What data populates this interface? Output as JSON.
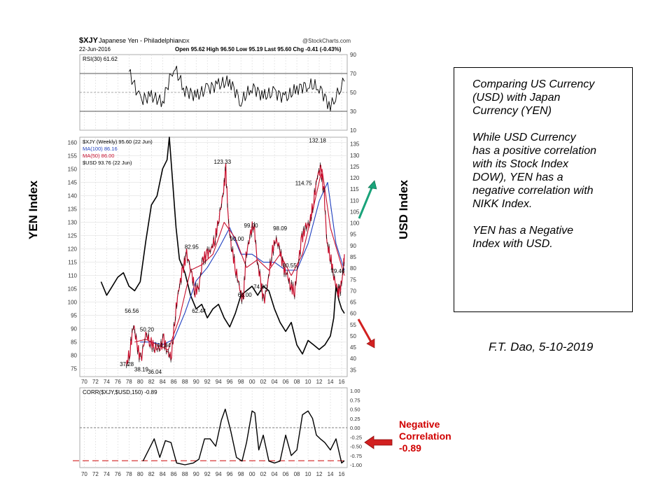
{
  "header": {
    "symbol": "$XJY",
    "name": "Japanese Yen - Philadelphia",
    "exchange": "INDX",
    "source": "@StockCharts.com",
    "date": "22-Jun-2016",
    "ohlc": "Open 95.62  High 96.50  Low 95.19  Last 95.60  Chg -0.41 (-0.43%)"
  },
  "left_axis_label": "YEN Index",
  "right_axis_label": "USD Index",
  "note_box": {
    "para1": "Comparing US Currency\n(USD) with Japan\nCurrency (YEN)",
    "para2": "While USD Currency\nhas a positive correlation\nwith its Stock Index\nDOW),  YEN has a\nnegative correlation with\nNIKK Index.",
    "para3": "YEN has a Negative\nIndex with USD."
  },
  "author": "F.T. Dao, 5-10-2019",
  "negative_label": "Negative\nCorrelation\n-0.89",
  "colors": {
    "price": "#c8102e",
    "ma100": "#1f3fbf",
    "ma50": "#c8102e",
    "usd": "#000000",
    "arrow_up": "#1aa37a",
    "arrow_down": "#d22020",
    "neg_line": "#d22020"
  },
  "chart_data": [
    {
      "type": "line",
      "panel": "RSI",
      "legend": "RSI(30) 61.62",
      "yticks": [
        10,
        30,
        50,
        70,
        90
      ],
      "levels": [
        30,
        50,
        70
      ],
      "ylim": [
        10,
        90
      ],
      "x": [
        1978,
        1980,
        1982,
        1984,
        1986,
        1988,
        1990,
        1992,
        1994,
        1996,
        1998,
        2000,
        2002,
        2004,
        2006,
        2008,
        2010,
        2012,
        2014,
        2016.5
      ],
      "values": [
        72,
        42,
        46,
        40,
        78,
        52,
        46,
        54,
        58,
        62,
        40,
        56,
        46,
        50,
        44,
        54,
        58,
        56,
        34,
        61.62
      ]
    },
    {
      "type": "line",
      "panel": "Price",
      "legend": [
        "$XJY (Weekly) 95.60 (22 Jun)",
        "MA(100) 86.16",
        "MA(50) 86.00",
        "$USD 93.76 (22 Jun)"
      ],
      "left_yticks": [
        75,
        80,
        85,
        90,
        95,
        100,
        105,
        110,
        115,
        120,
        125,
        130,
        135,
        140,
        145,
        150,
        155,
        160
      ],
      "right_yticks": [
        35,
        40,
        45,
        50,
        55,
        60,
        65,
        70,
        75,
        80,
        85,
        90,
        95,
        100,
        105,
        110,
        115,
        120,
        125,
        130,
        135
      ],
      "left_ylim": [
        72,
        162
      ],
      "right_ylim": [
        32,
        138
      ],
      "xticks": [
        "70",
        "72",
        "74",
        "76",
        "78",
        "80",
        "82",
        "84",
        "86",
        "88",
        "90",
        "92",
        "94",
        "96",
        "98",
        "00",
        "02",
        "04",
        "06",
        "08",
        "10",
        "12",
        "14",
        "16"
      ],
      "series": [
        {
          "name": "$XJY (Weekly) 95.60 (22 Jun)",
          "axis": "left",
          "x": [
            1977.5,
            1978.2,
            1978.8,
            1979.4,
            1980.1,
            1981.0,
            1981.8,
            1982.6,
            1983.4,
            1984.2,
            1985.0,
            1985.6,
            1986.3,
            1986.9,
            1987.6,
            1988.3,
            1989.1,
            1989.8,
            1990.5,
            1991.2,
            1992.0,
            1992.7,
            1993.4,
            1994.1,
            1994.8,
            1995.3,
            1995.8,
            1996.4,
            1997.1,
            1997.8,
            1998.4,
            1998.9,
            1999.6,
            2000.3,
            2000.9,
            2001.5,
            2002.1,
            2002.8,
            2003.5,
            2004.2,
            2004.9,
            2005.6,
            2006.3,
            2006.9,
            2007.6,
            2008.2,
            2008.9,
            2009.6,
            2010.3,
            2011.0,
            2011.7,
            2012.3,
            2012.9,
            2013.4,
            2014.0,
            2014.6,
            2015.2,
            2015.7,
            2016.2,
            2016.5
          ],
          "values": [
            76,
            82,
            92,
            84,
            78,
            88,
            85,
            83,
            82,
            86,
            80,
            80,
            96,
            105,
            112,
            118,
            112,
            104,
            106,
            116,
            118,
            120,
            124,
            132,
            140,
            150,
            129,
            120,
            112,
            105,
            100,
            117,
            125,
            130,
            116,
            108,
            100,
            107,
            118,
            124,
            120,
            113,
            110,
            106,
            104,
            114,
            124,
            128,
            130,
            138,
            148,
            150,
            140,
            122,
            117,
            110,
            104,
            104,
            110,
            118
          ]
        },
        {
          "name": "MA(50) 86.00",
          "axis": "left",
          "x": [
            1979,
            1981,
            1983,
            1985,
            1987,
            1989,
            1991,
            1993,
            1995,
            1997,
            1999,
            2001,
            2003,
            2005,
            2007,
            2009,
            2011,
            2012.5,
            2014,
            2016.5
          ],
          "values": [
            85,
            86,
            84,
            82,
            94,
            112,
            114,
            118,
            130,
            124,
            113,
            116,
            112,
            118,
            110,
            118,
            136,
            150,
            128,
            110
          ]
        },
        {
          "name": "MA(100) 86.16",
          "axis": "left",
          "x": [
            1980,
            1982,
            1984,
            1986,
            1988,
            1990,
            1992,
            1994,
            1996,
            1998,
            2000,
            2002,
            2004,
            2006,
            2008,
            2010,
            2012,
            2013.5,
            2015,
            2016.5
          ],
          "values": [
            85,
            85,
            84,
            86,
            96,
            108,
            113,
            120,
            128,
            118,
            118,
            115,
            115,
            112,
            112,
            122,
            138,
            145,
            122,
            112
          ]
        },
        {
          "name": "$USD 93.76 (22 Jun)",
          "axis": "right",
          "x": [
            1973,
            1974,
            1975,
            1976,
            1977,
            1978,
            1979,
            1980,
            1981,
            1982,
            1983,
            1984,
            1984.8,
            1985.2,
            1985.8,
            1986.4,
            1987,
            1988,
            1989,
            1990,
            1991,
            1992,
            1993,
            1994,
            1995,
            1996,
            1997,
            1998,
            1999,
            2000,
            2001,
            2002,
            2003,
            2004,
            2005,
            2006,
            2007,
            2008,
            2009,
            2010,
            2011,
            2012,
            2013,
            2014,
            2014.6,
            2015,
            2015.5,
            2016,
            2016.5
          ],
          "values": [
            74,
            68,
            72,
            76,
            78,
            72,
            70,
            74,
            92,
            108,
            112,
            124,
            128,
            138,
            118,
            98,
            84,
            78,
            68,
            62,
            64,
            58,
            62,
            64,
            58,
            54,
            60,
            68,
            70,
            72,
            68,
            72,
            70,
            62,
            56,
            52,
            56,
            46,
            42,
            48,
            46,
            44,
            46,
            50,
            58,
            72,
            66,
            62,
            60
          ]
        }
      ],
      "annotations": [
        {
          "label": "37.28",
          "x": 1977.6,
          "y": 76
        },
        {
          "label": "56.56",
          "x": 1978.5,
          "y": 96
        },
        {
          "label": "38.19",
          "x": 1980.2,
          "y": 74
        },
        {
          "label": "50.20",
          "x": 1981.2,
          "y": 89
        },
        {
          "label": "36.04",
          "x": 1982.6,
          "y": 73
        },
        {
          "label": "44.84",
          "x": 1984.2,
          "y": 83
        },
        {
          "label": "82.95",
          "x": 1989.2,
          "y": 120
        },
        {
          "label": "62.44",
          "x": 1990.5,
          "y": 96
        },
        {
          "label": "123.33",
          "x": 1994.7,
          "y": 152
        },
        {
          "label": "90.00",
          "x": 1997.3,
          "y": 123
        },
        {
          "label": "99.00",
          "x": 1999.8,
          "y": 128
        },
        {
          "label": "68.00",
          "x": 1998.7,
          "y": 102
        },
        {
          "label": "74.00",
          "x": 2001.5,
          "y": 105
        },
        {
          "label": "98.09",
          "x": 2005,
          "y": 127
        },
        {
          "label": "80.55",
          "x": 2006.7,
          "y": 113
        },
        {
          "label": "114.75",
          "x": 2009.2,
          "y": 144
        },
        {
          "label": "132.18",
          "x": 2011.7,
          "y": 160
        },
        {
          "label": "79.46",
          "x": 2015.3,
          "y": 111
        }
      ]
    },
    {
      "type": "line",
      "panel": "Correlation",
      "legend": "CORR($XJY,$USD,150) -0.89",
      "yticks": [
        "1.00",
        "0.75",
        "0.50",
        "0.25",
        "0.00",
        "-0.25",
        "-0.50",
        "-0.75",
        "-1.00"
      ],
      "ylim": [
        -1,
        1
      ],
      "zero_line": 0,
      "threshold": -0.89,
      "xticks": [
        "70",
        "72",
        "74",
        "76",
        "78",
        "80",
        "82",
        "84",
        "86",
        "88",
        "90",
        "92",
        "94",
        "96",
        "98",
        "00",
        "02",
        "04",
        "06",
        "08",
        "10",
        "12",
        "14",
        "16"
      ],
      "x": [
        1980.5,
        1981.5,
        1982.5,
        1983.5,
        1984.5,
        1985.5,
        1986.5,
        1988,
        1989.5,
        1990.5,
        1991.5,
        1992.5,
        1993.5,
        1994.5,
        1995.2,
        1996.2,
        1997.2,
        1998.2,
        1999,
        2000,
        2000.5,
        2001.2,
        2002,
        2003,
        2004,
        2005,
        2006,
        2007,
        2008,
        2009,
        2010,
        2010.8,
        2011.5,
        2012.2,
        2013,
        2014,
        2015,
        2016,
        2016.5
      ],
      "values": [
        -0.9,
        -0.6,
        -0.3,
        -0.8,
        -0.35,
        -0.4,
        -0.95,
        -1.0,
        -0.95,
        -0.85,
        -0.3,
        -0.3,
        -0.5,
        0.2,
        0.5,
        -0.1,
        -0.8,
        -0.9,
        -0.4,
        0.45,
        0.4,
        -0.6,
        -0.2,
        -0.9,
        -0.95,
        -0.9,
        -0.2,
        -0.75,
        -0.6,
        0.35,
        0.45,
        0.25,
        -0.2,
        -0.3,
        -0.4,
        -0.6,
        -0.3,
        -0.95,
        -0.89
      ]
    }
  ]
}
